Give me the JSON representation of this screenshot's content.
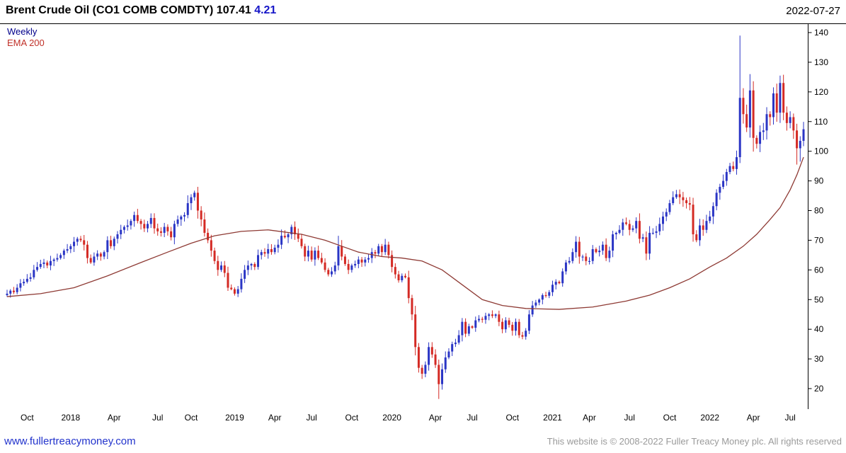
{
  "header": {
    "title": "Brent Crude Oil  (CO1 COMB COMDTY)",
    "last_price": "107.41",
    "change": "4.21",
    "date": "2022-07-27"
  },
  "legend": {
    "timeframe": "Weekly",
    "overlay": "EMA 200"
  },
  "footer": {
    "site_link": "www.fullertreacymoney.com",
    "copyright": "This website is © 2008-2022 Fuller Treacy Money plc. All rights reserved"
  },
  "colors": {
    "up_candle": "#2a35c5",
    "down_candle": "#d42a24",
    "ema_line": "#8e3a34",
    "change_text": "#1515c8",
    "legend_weekly": "#00008b",
    "legend_ema": "#c03028",
    "link": "#2233cc",
    "copyright_text": "#9a9a9a",
    "axis": "#000000"
  },
  "chart_data": {
    "type": "candlestick",
    "title": "Brent Crude Oil (CO1 COMB COMDTY)",
    "timeframe": "Weekly",
    "overlay": "EMA 200",
    "last_price": 107.41,
    "change": 4.21,
    "ylim": [
      15,
      143
    ],
    "yticks": [
      20,
      30,
      40,
      50,
      60,
      70,
      80,
      90,
      100,
      110,
      120,
      130,
      140
    ],
    "xticks": [
      {
        "label": "Oct",
        "week": 6
      },
      {
        "label": "2018",
        "week": 19
      },
      {
        "label": "Apr",
        "week": 32
      },
      {
        "label": "Jul",
        "week": 45
      },
      {
        "label": "Oct",
        "week": 55
      },
      {
        "label": "2019",
        "week": 68
      },
      {
        "label": "Apr",
        "week": 80
      },
      {
        "label": "Jul",
        "week": 91
      },
      {
        "label": "Oct",
        "week": 103
      },
      {
        "label": "2020",
        "week": 115
      },
      {
        "label": "Apr",
        "week": 128
      },
      {
        "label": "Jul",
        "week": 139
      },
      {
        "label": "Oct",
        "week": 151
      },
      {
        "label": "2021",
        "week": 163
      },
      {
        "label": "Apr",
        "week": 174
      },
      {
        "label": "Jul",
        "week": 186
      },
      {
        "label": "Oct",
        "week": 198
      },
      {
        "label": "2022",
        "week": 210
      },
      {
        "label": "Apr",
        "week": 223
      },
      {
        "label": "Jul",
        "week": 234
      }
    ],
    "first_open": 51.5,
    "closes": [
      52,
      53,
      52.5,
      54,
      55.5,
      56,
      57,
      57.5,
      60,
      61,
      62,
      62.5,
      61.5,
      63,
      63.5,
      64,
      65,
      66.5,
      67,
      68,
      69.5,
      70.5,
      70,
      68.5,
      64,
      62.5,
      64.5,
      65.5,
      64.5,
      66,
      70,
      68,
      70.5,
      72,
      73.5,
      74.5,
      75,
      76.5,
      78.5,
      76.5,
      75.5,
      74,
      75.5,
      77.5,
      74,
      73,
      72.5,
      74.5,
      73,
      71,
      75.5,
      77,
      78,
      78.5,
      82.5,
      84.5,
      86,
      80,
      77,
      72.5,
      70,
      66.5,
      63,
      60,
      61.5,
      59,
      54,
      53.5,
      52,
      53.5,
      57,
      60,
      61.5,
      62,
      61,
      65,
      66,
      65.5,
      67,
      66,
      67.5,
      68.5,
      71.5,
      71,
      72,
      74.5,
      72,
      70.5,
      68,
      64.5,
      66.5,
      63.5,
      66.5,
      64,
      62.5,
      60,
      58.5,
      59.5,
      61.5,
      68,
      64.5,
      62,
      60,
      61.5,
      62,
      63.5,
      62.5,
      63.5,
      64,
      66,
      65.5,
      68,
      66,
      68.5,
      65,
      61,
      58.5,
      56.5,
      58,
      57.5,
      50.5,
      45,
      34,
      27,
      25,
      28,
      34,
      31.5,
      28,
      21.5,
      26.5,
      30.5,
      32.5,
      35,
      35.5,
      38,
      42.5,
      38.5,
      41,
      40.5,
      43,
      43.5,
      43.2,
      44.5,
      45,
      44.5,
      45,
      42.5,
      40,
      43,
      41.5,
      39.5,
      42.5,
      38,
      37.5,
      39.5,
      45,
      48,
      49,
      50,
      51.5,
      51.3,
      52.5,
      55,
      56,
      55.5,
      59.5,
      62.5,
      63,
      66,
      69.5,
      64.5,
      64.5,
      63,
      63,
      67,
      66,
      66.5,
      68.5,
      64,
      66.5,
      72,
      72.5,
      73.5,
      76,
      75.5,
      73.5,
      74,
      76.5,
      70.5,
      71,
      65.5,
      72.5,
      72.5,
      73,
      75.5,
      78,
      79.5,
      82.5,
      84.5,
      85.5,
      84.5,
      83.5,
      82.5,
      82,
      72,
      70,
      75,
      73.5,
      76.5,
      78,
      81.5,
      86,
      88,
      90,
      93,
      95,
      94,
      98,
      118,
      112.5,
      108,
      120.5,
      104.5,
      102.5,
      106.5,
      107,
      112.5,
      111.5,
      119.5,
      113,
      123,
      113,
      109.5,
      111.5,
      107,
      101,
      103.5,
      107.41
    ],
    "ohlc_overrides": {
      "99": {
        "high": 71.5
      },
      "129": {
        "low": 16.5
      },
      "219": {
        "high": 139,
        "low": 96
      },
      "222": {
        "high": 126
      },
      "231": {
        "high": 125.5
      },
      "236": {
        "low": 95.5
      },
      "237": {
        "low": 96.5
      }
    },
    "ema200_anchors": [
      [
        0,
        51
      ],
      [
        10,
        52
      ],
      [
        20,
        54
      ],
      [
        30,
        58
      ],
      [
        40,
        62.5
      ],
      [
        48,
        66
      ],
      [
        55,
        69
      ],
      [
        62,
        71.5
      ],
      [
        70,
        73
      ],
      [
        78,
        73.5
      ],
      [
        88,
        72
      ],
      [
        95,
        70
      ],
      [
        100,
        68
      ],
      [
        105,
        66
      ],
      [
        112,
        64.5
      ],
      [
        118,
        64
      ],
      [
        124,
        63
      ],
      [
        130,
        60
      ],
      [
        136,
        55
      ],
      [
        142,
        50
      ],
      [
        148,
        48
      ],
      [
        155,
        47
      ],
      [
        165,
        46.7
      ],
      [
        175,
        47.5
      ],
      [
        185,
        49.5
      ],
      [
        192,
        51.5
      ],
      [
        198,
        54
      ],
      [
        204,
        57
      ],
      [
        210,
        61
      ],
      [
        215,
        64
      ],
      [
        220,
        68
      ],
      [
        224,
        72
      ],
      [
        228,
        77
      ],
      [
        231,
        81
      ],
      [
        234,
        87
      ],
      [
        236,
        92
      ],
      [
        238,
        98
      ]
    ]
  }
}
